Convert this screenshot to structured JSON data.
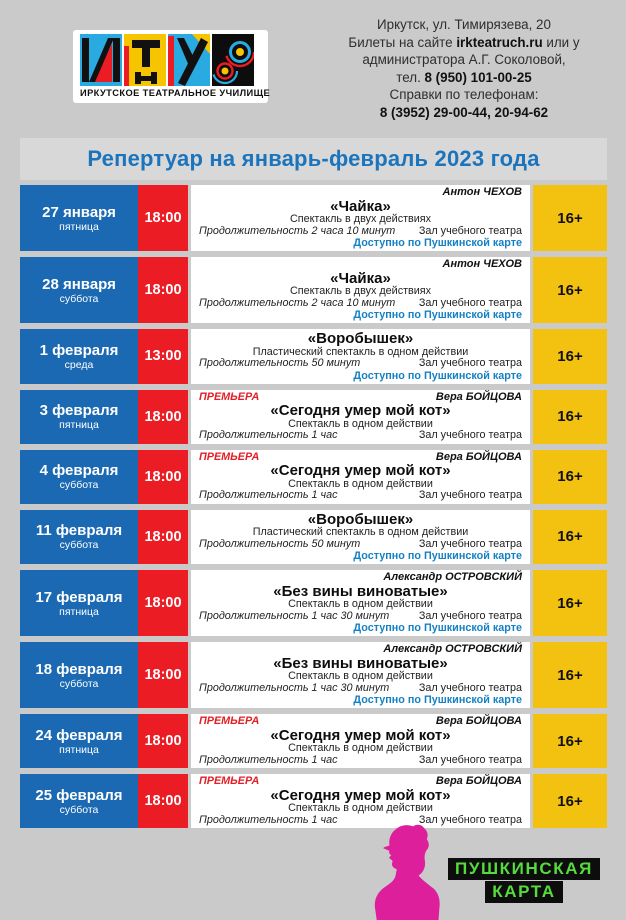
{
  "page": {
    "title": "Репертуар на январь-февраль 2023 года",
    "bg": "#cacaca"
  },
  "header": {
    "logo": {
      "caption": "ИРКУТСКОЕ ТЕАТРАЛЬНОЕ УЧИЛИЩЕ",
      "letters": "ИТУ",
      "anniversary": "60"
    },
    "contact_lines": [
      [
        {
          "t": "Иркутск, ул. Тимирязева, 20",
          "b": false
        }
      ],
      [
        {
          "t": "Билеты на сайте ",
          "b": false
        },
        {
          "t": "irkteatruch.ru",
          "b": true
        },
        {
          "t": " или у",
          "b": false
        }
      ],
      [
        {
          "t": "администратора А.Г. Соколовой,",
          "b": false
        }
      ],
      [
        {
          "t": "тел. ",
          "b": false
        },
        {
          "t": "8 (950) 101-00-25",
          "b": true
        }
      ],
      [
        {
          "t": "Справки по телефонам:",
          "b": false
        }
      ],
      [
        {
          "t": "8 (3952) 29-00-44, 20-94-62",
          "b": true
        }
      ]
    ]
  },
  "schedule": {
    "premiere_label": "ПРЕМЬЕРА",
    "pushkin_note": "Доступно по Пушкинской карте",
    "rows": [
      {
        "date": "27 января",
        "weekday": "пятница",
        "time": "18:00",
        "premiere": false,
        "author": "Антон ЧЕХОВ",
        "title": "«Чайка»",
        "desc": "Спектакль в двух действиях",
        "duration": "Продолжительность 2 часа 10 минут",
        "hall": "Зал учебного театра",
        "pushkin": true,
        "age": "16+"
      },
      {
        "date": "28 января",
        "weekday": "суббота",
        "time": "18:00",
        "premiere": false,
        "author": "Антон ЧЕХОВ",
        "title": "«Чайка»",
        "desc": "Спектакль в двух действиях",
        "duration": "Продолжительность 2 часа 10 минут",
        "hall": "Зал учебного театра",
        "pushkin": true,
        "age": "16+"
      },
      {
        "date": "1 февраля",
        "weekday": "среда",
        "time": "13:00",
        "premiere": false,
        "author": "",
        "title": "«Воробышек»",
        "desc": "Пластический спектакль в одном действии",
        "duration": "Продолжительность 50 минут",
        "hall": "Зал учебного театра",
        "pushkin": true,
        "age": "16+"
      },
      {
        "date": "3 февраля",
        "weekday": "пятница",
        "time": "18:00",
        "premiere": true,
        "author": "Вера БОЙЦОВА",
        "title": "«Сегодня умер мой кот»",
        "desc": "Спектакль в одном действии",
        "duration": "Продолжительность 1 час",
        "hall": "Зал учебного театра",
        "pushkin": false,
        "age": "16+"
      },
      {
        "date": "4 февраля",
        "weekday": "суббота",
        "time": "18:00",
        "premiere": true,
        "author": "Вера БОЙЦОВА",
        "title": "«Сегодня умер мой кот»",
        "desc": "Спектакль в одном действии",
        "duration": "Продолжительность 1 час",
        "hall": "Зал учебного театра",
        "pushkin": false,
        "age": "16+"
      },
      {
        "date": "11 февраля",
        "weekday": "суббота",
        "time": "18:00",
        "premiere": false,
        "author": "",
        "title": "«Воробышек»",
        "desc": "Пластический спектакль в одном действии",
        "duration": "Продолжительность 50 минут",
        "hall": "Зал учебного театра",
        "pushkin": true,
        "age": "16+"
      },
      {
        "date": "17 февраля",
        "weekday": "пятница",
        "time": "18:00",
        "premiere": false,
        "author": "Александр ОСТРОВСКИЙ",
        "title": "«Без вины виноватые»",
        "desc": "Спектакль в одном действии",
        "duration": "Продолжительность 1 час 30 минут",
        "hall": "Зал учебного театра",
        "pushkin": true,
        "age": "16+"
      },
      {
        "date": "18 февраля",
        "weekday": "суббота",
        "time": "18:00",
        "premiere": false,
        "author": "Александр ОСТРОВСКИЙ",
        "title": "«Без вины виноватые»",
        "desc": "Спектакль в одном действии",
        "duration": "Продолжительность 1 час 30 минут",
        "hall": "Зал учебного театра",
        "pushkin": true,
        "age": "16+"
      },
      {
        "date": "24 февраля",
        "weekday": "пятница",
        "time": "18:00",
        "premiere": true,
        "author": "Вера БОЙЦОВА",
        "title": "«Сегодня умер мой кот»",
        "desc": "Спектакль в одном действии",
        "duration": "Продолжительность 1 час",
        "hall": "Зал учебного театра",
        "pushkin": false,
        "age": "16+"
      },
      {
        "date": "25 февраля",
        "weekday": "суббота",
        "time": "18:00",
        "premiere": true,
        "author": "Вера БОЙЦОВА",
        "title": "«Сегодня умер мой кот»",
        "desc": "Спектакль в одном действии",
        "duration": "Продолжительность 1 час",
        "hall": "Зал учебного театра",
        "pushkin": false,
        "age": "16+"
      }
    ]
  },
  "footer": {
    "line1": "ПУШКИНСКАЯ",
    "line2": "КАРТА"
  },
  "icons": {
    "itu-logo": "four colored tiles spelling ИТУ + 60 anniversary circles",
    "pushkin-bust-icon": "magenta Pushkin profile bust"
  },
  "colors": {
    "bg": "#cacaca",
    "band": "#d8d8d8",
    "date_blue": "#1a69b2",
    "time_red": "#ec1c24",
    "age_yellow": "#f3c211",
    "title_blue": "#1b74bc",
    "link_blue": "#1581c5",
    "premiere_red": "#e31e24",
    "footer_magenta": "#dd1f9b",
    "footer_green": "#55dc3c"
  }
}
